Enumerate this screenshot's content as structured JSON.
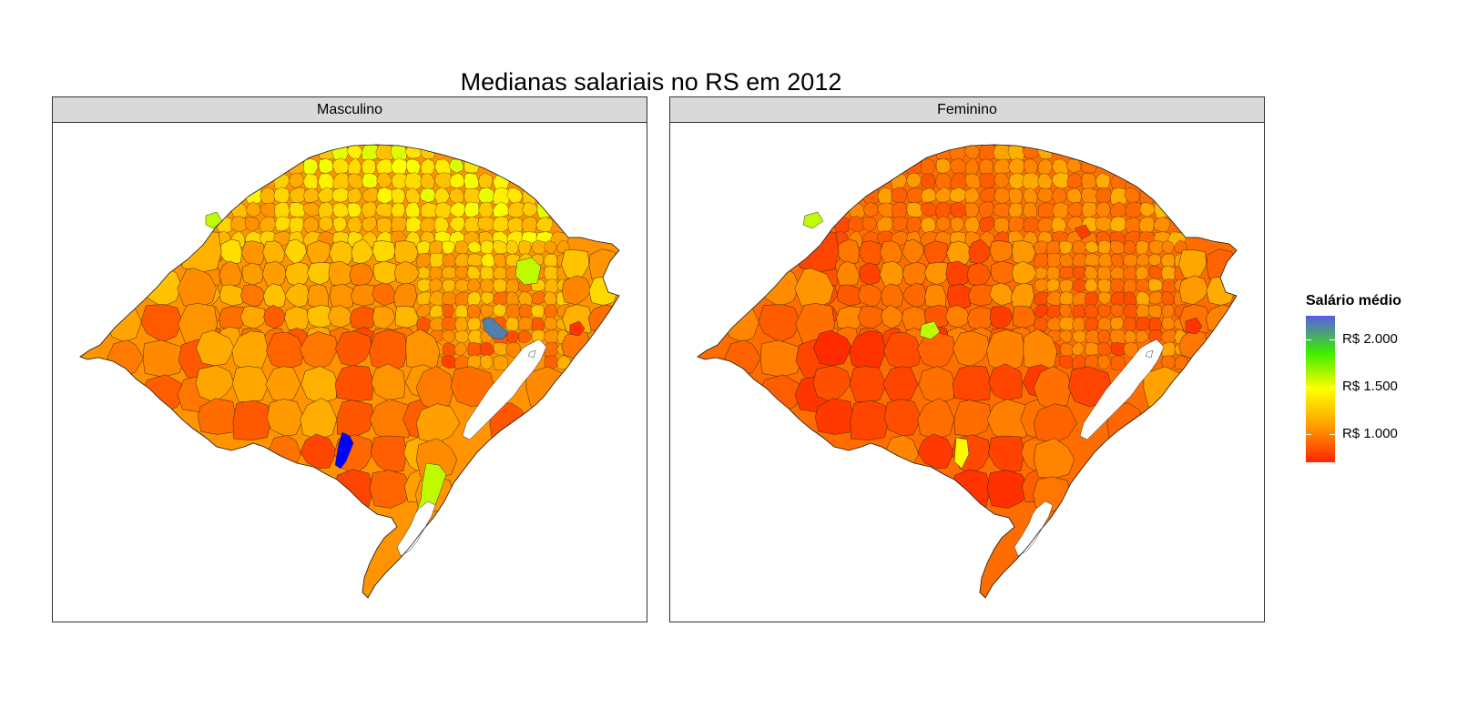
{
  "title": "Medianas salariais no RS em 2012",
  "panels": [
    {
      "label": "Masculino"
    },
    {
      "label": "Feminino"
    }
  ],
  "legend": {
    "title": "Salário médio",
    "scale_min": 700,
    "scale_max": 2250,
    "colors": [
      "#ff2400",
      "#ff9f00",
      "#ffff00",
      "#3cee00",
      "#5a5ae8"
    ],
    "breaks": [
      {
        "value": 2000,
        "label": "R$ 2.000"
      },
      {
        "value": 1500,
        "label": "R$ 1.500"
      },
      {
        "value": 1000,
        "label": "R$ 1.000"
      }
    ]
  },
  "chart_data": {
    "type": "choropleth",
    "region": "Rio Grande do Sul",
    "year": 2012,
    "fill_variable": "Salário médio",
    "facets": [
      "Masculino",
      "Feminino"
    ],
    "color_scale": {
      "low": "#ff2400",
      "high": "#5a5ae8",
      "range": [
        700,
        2250
      ],
      "breaks": [
        1000,
        1500,
        2000
      ]
    },
    "notable_regions": [
      {
        "facet": "Masculino",
        "value": 2250,
        "color": "#0000ff"
      },
      {
        "facet": "Masculino",
        "value": 2150,
        "color": "#7b6fd6"
      },
      {
        "facet": "Masculino",
        "value": 1600,
        "color": "#7cfc00"
      },
      {
        "facet": "Masculino",
        "value": 750,
        "color": "#ff2a00"
      },
      {
        "facet": "Feminino",
        "value": 1600,
        "color": "#7cfc00"
      },
      {
        "facet": "Feminino",
        "value": 750,
        "color": "#ff2a00"
      }
    ]
  }
}
